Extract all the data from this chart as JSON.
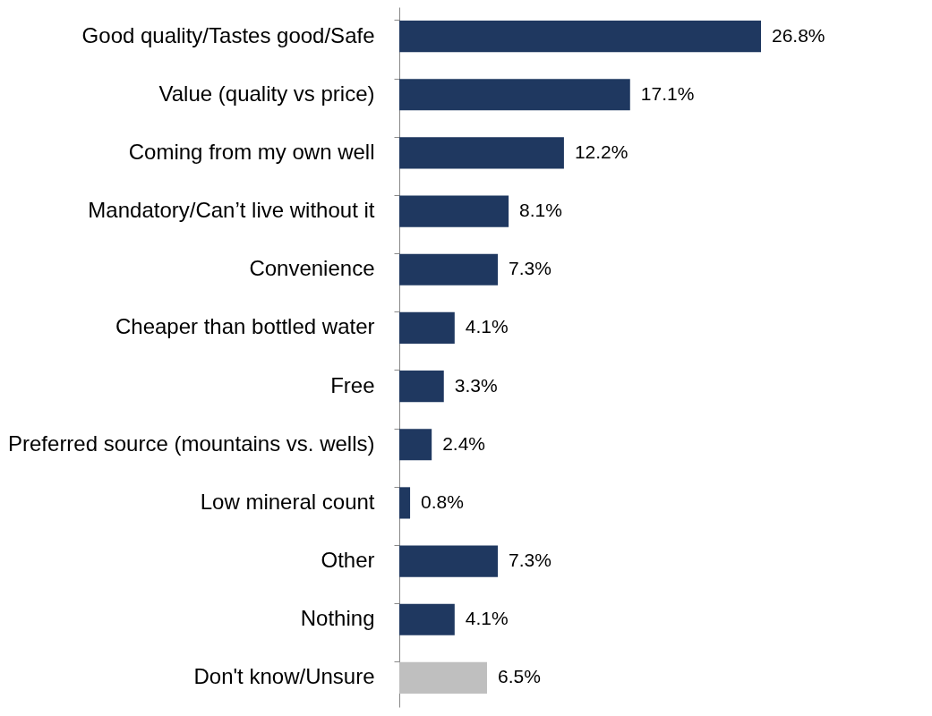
{
  "chart_data": {
    "type": "bar",
    "orientation": "horizontal",
    "categories": [
      "Good quality/Tastes good/Safe",
      "Value (quality vs price)",
      "Coming from my own well",
      "Mandatory/Can’t live without it",
      "Convenience",
      "Cheaper than bottled water",
      "Free",
      "Preferred source (mountains vs. wells)",
      "Low mineral count",
      "Other",
      "Nothing",
      "Don't know/Unsure"
    ],
    "values": [
      26.8,
      17.1,
      12.2,
      8.1,
      7.3,
      4.1,
      3.3,
      2.4,
      0.8,
      7.3,
      4.1,
      6.5
    ],
    "value_labels": [
      "26.8%",
      "17.1%",
      "12.2%",
      "8.1%",
      "7.3%",
      "4.1%",
      "3.3%",
      "2.4%",
      "0.8%",
      "7.3%",
      "4.1%",
      "6.5%"
    ],
    "colors": [
      "#1f3860",
      "#1f3860",
      "#1f3860",
      "#1f3860",
      "#1f3860",
      "#1f3860",
      "#1f3860",
      "#1f3860",
      "#1f3860",
      "#1f3860",
      "#1f3860",
      "#bfbfbf"
    ]
  }
}
